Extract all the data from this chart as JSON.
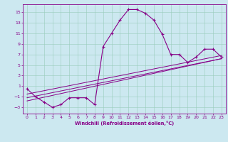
{
  "xlabel": "Windchill (Refroidissement éolien,°C)",
  "background_color": "#cce8f0",
  "grid_color": "#99ccbb",
  "line_color": "#880088",
  "xlim": [
    -0.5,
    23.5
  ],
  "ylim": [
    -4.2,
    16.5
  ],
  "yticks": [
    -3,
    -1,
    1,
    3,
    5,
    7,
    9,
    11,
    13,
    15
  ],
  "xticks": [
    0,
    1,
    2,
    3,
    4,
    5,
    6,
    7,
    8,
    9,
    10,
    11,
    12,
    13,
    14,
    15,
    16,
    17,
    18,
    19,
    20,
    21,
    22,
    23
  ],
  "series_x": [
    0,
    1,
    2,
    3,
    4,
    5,
    6,
    7,
    8,
    9,
    10,
    11,
    12,
    13,
    14,
    15,
    16,
    17,
    18,
    19,
    20,
    21,
    22,
    23
  ],
  "series_y": [
    0.5,
    -1.0,
    -2.0,
    -3.0,
    -2.5,
    -1.2,
    -1.2,
    -1.2,
    -2.5,
    8.5,
    11.0,
    13.5,
    15.5,
    15.5,
    14.8,
    13.5,
    10.8,
    7.0,
    7.0,
    5.5,
    6.5,
    8.0,
    8.0,
    6.5
  ],
  "line2_x": [
    0,
    23
  ],
  "line2_y": [
    -1.8,
    6.2
  ],
  "line3_x": [
    0,
    23
  ],
  "line3_y": [
    -1.2,
    6.2
  ],
  "line4_x": [
    0,
    23
  ],
  "line4_y": [
    -0.5,
    6.8
  ]
}
